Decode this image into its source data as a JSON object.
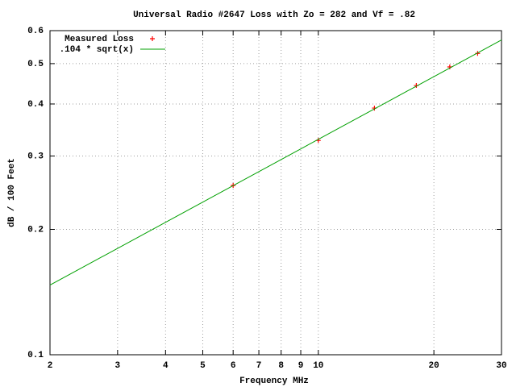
{
  "chart_data": {
    "type": "line",
    "title": "Universal Radio #2647 Loss with Zo = 282 and Vf = .82",
    "xlabel": "Frequency MHz",
    "ylabel": "dB / 100 Feet",
    "xscale": "log",
    "yscale": "log",
    "xlim": [
      2,
      30
    ],
    "ylim": [
      0.1,
      0.6
    ],
    "xticks": [
      2,
      3,
      4,
      5,
      6,
      7,
      8,
      9,
      10,
      20,
      30
    ],
    "yticks": [
      0.1,
      0.2,
      0.3,
      0.4,
      0.5,
      0.6
    ],
    "grid": true,
    "legend": "top-left",
    "series": [
      {
        "name": "Measured Loss",
        "style": "points",
        "color": "#ff0000",
        "x": [
          6,
          10,
          14,
          18,
          22,
          26
        ],
        "values": [
          0.255,
          0.327,
          0.391,
          0.443,
          0.491,
          0.529
        ]
      },
      {
        "name": ".104 * sqrt(x)",
        "style": "line",
        "color": "#00a000",
        "x": [
          2,
          30
        ],
        "values": [
          0.147,
          0.57
        ]
      }
    ]
  }
}
